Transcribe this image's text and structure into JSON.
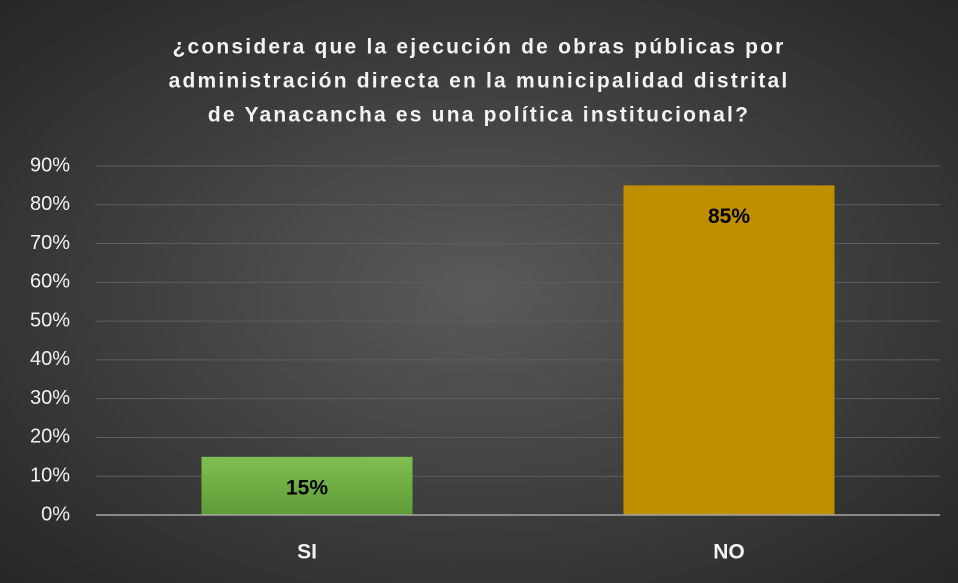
{
  "chart_data": {
    "type": "bar",
    "title": [
      "¿considera que la ejecución de obras públicas por",
      "administración directa en la municipalidad distrital",
      "de Yanacancha es una política institucional?"
    ],
    "categories": [
      "SI",
      "NO"
    ],
    "values": [
      15,
      85
    ],
    "value_labels": [
      "15%",
      "85%"
    ],
    "colors": [
      "#70ad47",
      "#bf8f00"
    ],
    "ylim": [
      0,
      90
    ],
    "yticks": [
      {
        "value": 0,
        "label": "0%"
      },
      {
        "value": 10,
        "label": "10%"
      },
      {
        "value": 20,
        "label": "20%"
      },
      {
        "value": 30,
        "label": "30%"
      },
      {
        "value": 40,
        "label": "40%"
      },
      {
        "value": 50,
        "label": "50%"
      },
      {
        "value": 60,
        "label": "60%"
      },
      {
        "value": 70,
        "label": "70%"
      },
      {
        "value": 80,
        "label": "80%"
      },
      {
        "value": 90,
        "label": "90%"
      }
    ],
    "grid": true
  }
}
